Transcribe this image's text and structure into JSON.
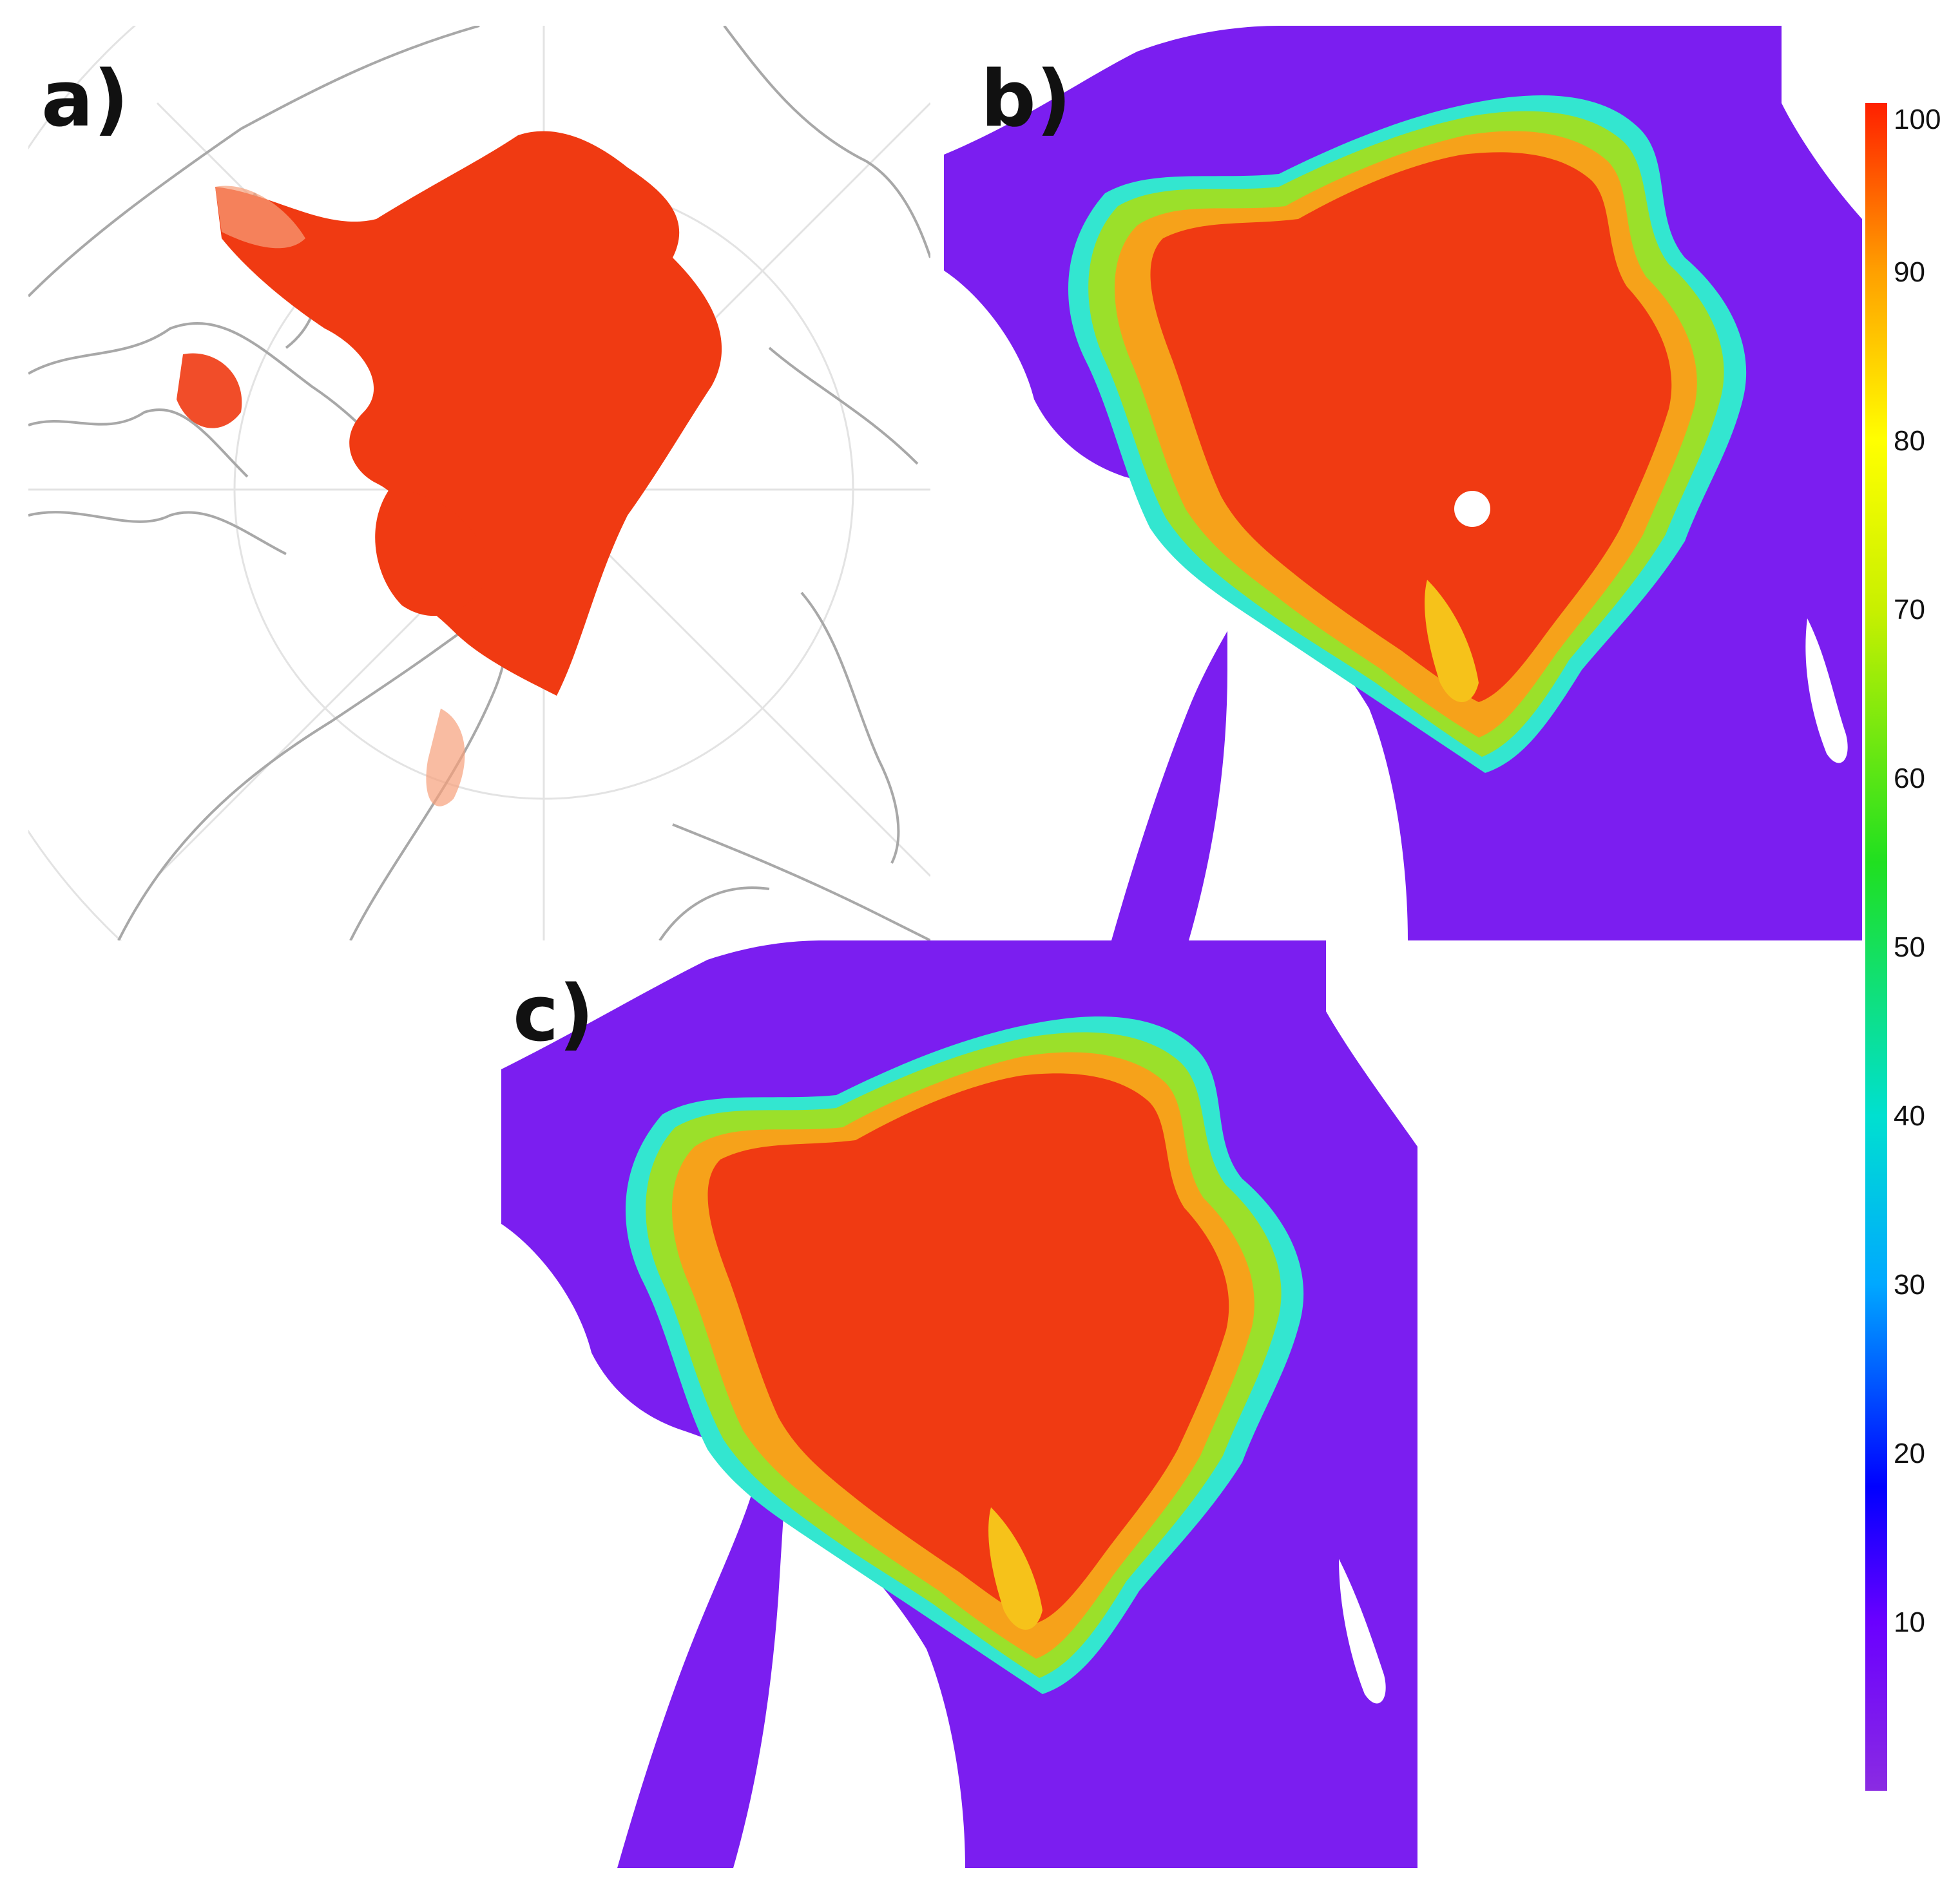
{
  "panels": [
    {
      "label": "a)",
      "name": "panel-a"
    },
    {
      "label": "b)",
      "name": "panel-b"
    },
    {
      "label": "c)",
      "name": "panel-c"
    }
  ],
  "colorbar": {
    "ticks": [
      "100",
      "90",
      "80",
      "70",
      "60",
      "50",
      "40",
      "30",
      "20",
      "10"
    ],
    "tick_values": [
      100,
      90,
      80,
      70,
      60,
      50,
      40,
      30,
      20,
      10
    ],
    "range": [
      0,
      100
    ],
    "gradient_stops": [
      {
        "value": 0,
        "color": "#8a2be2"
      },
      {
        "value": 10,
        "color": "#6a00ff"
      },
      {
        "value": 18,
        "color": "#0000ff"
      },
      {
        "value": 30,
        "color": "#00a8ff"
      },
      {
        "value": 40,
        "color": "#00e0d0"
      },
      {
        "value": 55,
        "color": "#20e020"
      },
      {
        "value": 70,
        "color": "#c8f000"
      },
      {
        "value": 80,
        "color": "#ffff00"
      },
      {
        "value": 90,
        "color": "#ffa000"
      },
      {
        "value": 100,
        "color": "#ff2000"
      }
    ]
  },
  "colors": {
    "ice_high": "#f03a12",
    "ice_mid": "#f6a21a",
    "ice_low": "#9be02a",
    "ice_edge": "#33e6d0",
    "ocean": "#7b1ef0",
    "land": "#ffffff",
    "coastline": "#a8a8a8"
  }
}
